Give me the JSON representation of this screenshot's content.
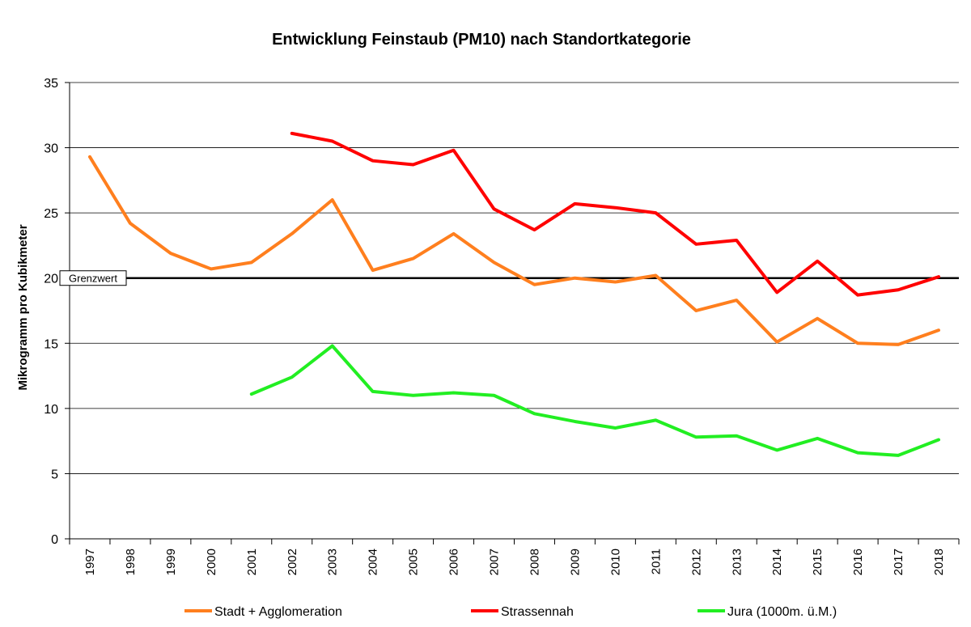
{
  "chart_data": {
    "type": "line",
    "title": "Entwicklung Feinstaub (PM10) nach Standortkategorie",
    "xlabel": "",
    "ylabel": "Mikrogramm pro Kubikmeter",
    "ylim": [
      0,
      35
    ],
    "yticks": [
      0,
      5,
      10,
      15,
      20,
      25,
      30,
      35
    ],
    "grid": true,
    "legend_position": "bottom",
    "categories": [
      "1997",
      "1998",
      "1999",
      "2000",
      "2001",
      "2002",
      "2003",
      "2004",
      "2005",
      "2006",
      "2007",
      "2008",
      "2009",
      "2010",
      "2011",
      "2012",
      "2013",
      "2014",
      "2015",
      "2016",
      "2017",
      "2018"
    ],
    "series": [
      {
        "name": "Stadt + Agglomeration",
        "color": "#FF7F1E",
        "values": [
          29.3,
          24.2,
          21.9,
          20.7,
          21.2,
          23.4,
          26.0,
          20.6,
          21.5,
          23.4,
          21.2,
          19.5,
          20.0,
          19.7,
          20.2,
          17.5,
          18.3,
          15.1,
          16.9,
          15.0,
          14.9,
          16.0
        ]
      },
      {
        "name": "Strassennah",
        "color": "#FF0000",
        "values": [
          null,
          null,
          null,
          null,
          null,
          31.1,
          30.5,
          29.0,
          28.7,
          29.8,
          25.3,
          23.7,
          25.7,
          25.4,
          25.0,
          22.6,
          22.9,
          18.9,
          21.3,
          18.7,
          19.1,
          20.1
        ]
      },
      {
        "name": "Jura (1000m. ü.M.)",
        "color": "#22EE22",
        "values": [
          null,
          null,
          null,
          null,
          11.1,
          12.4,
          14.8,
          11.3,
          11.0,
          11.2,
          11.0,
          9.6,
          9.0,
          8.5,
          9.1,
          7.8,
          7.9,
          6.8,
          7.7,
          6.6,
          6.4,
          7.6
        ]
      }
    ],
    "reference_line": {
      "label": "Grenzwert",
      "value": 20,
      "color": "#000000"
    }
  }
}
